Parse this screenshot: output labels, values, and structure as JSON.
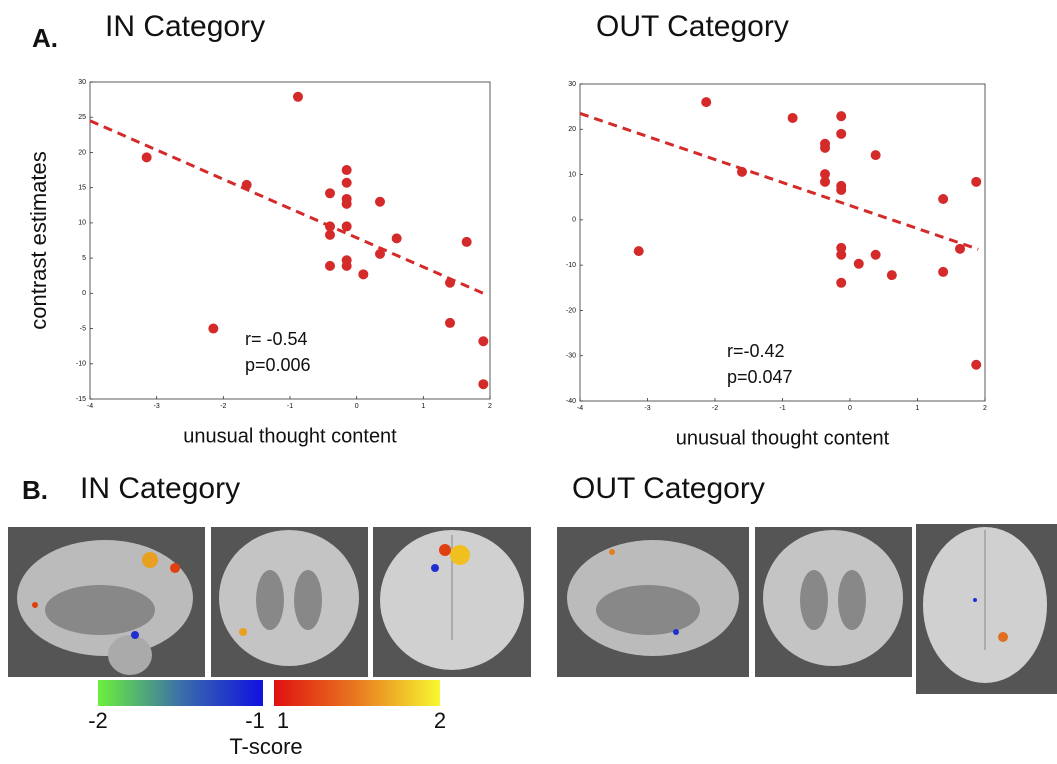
{
  "panel_a": {
    "label": "A."
  },
  "chart_data": [
    {
      "type": "scatter",
      "title": "IN Category",
      "x_label": "unusual thought content",
      "y_label": "contrast estimates",
      "annotations": [
        "r= -0.54",
        "p=0.006"
      ],
      "color": "#d42a2a",
      "x": [
        -3.15,
        -1.65,
        -0.88,
        -2.15,
        -0.4,
        -0.4,
        -0.4,
        -0.4,
        -0.15,
        -0.15,
        -0.15,
        -0.15,
        -0.15,
        -0.15,
        -0.15,
        0.1,
        0.35,
        0.35,
        0.6,
        1.4,
        1.4,
        1.65,
        1.9,
        1.9
      ],
      "y": [
        19.3,
        15.4,
        27.9,
        -5,
        14.2,
        9.5,
        8.3,
        3.9,
        17.5,
        15.7,
        13.4,
        12.7,
        9.5,
        4.7,
        3.9,
        2.7,
        13,
        5.6,
        7.8,
        1.5,
        -4.2,
        7.3,
        -6.8,
        -12.9
      ],
      "trendline": {
        "x": [
          -4,
          1.9
        ],
        "y": [
          24.5,
          0
        ]
      },
      "xlim": [
        -4,
        2
      ],
      "ylim": [
        -15,
        30
      ],
      "xticks": [
        -4,
        -3,
        -2,
        -1,
        0,
        1,
        2
      ],
      "yticks": [
        -15,
        -10,
        -5,
        0,
        5,
        10,
        15,
        20,
        25,
        30
      ]
    },
    {
      "type": "scatter",
      "title": "OUT Category",
      "x_label": "unusual thought content",
      "annotations": [
        "r=-0.42",
        "p=0.047"
      ],
      "color": "#d42a2a",
      "x": [
        -3.13,
        -2.13,
        -1.6,
        -0.85,
        -0.37,
        -0.37,
        -0.37,
        -0.37,
        -0.13,
        -0.13,
        -0.13,
        -0.13,
        -0.13,
        -0.13,
        -0.13,
        0.13,
        0.38,
        0.38,
        0.62,
        1.38,
        1.38,
        1.63,
        1.87,
        1.87
      ],
      "y": [
        -6.9,
        26,
        10.6,
        22.5,
        16.8,
        15.9,
        10.1,
        8.4,
        22.9,
        19,
        7.5,
        6.6,
        -6.2,
        -7.7,
        -13.9,
        -9.7,
        14.3,
        -7.7,
        -12.2,
        4.6,
        -11.5,
        -6.4,
        8.4,
        -32
      ],
      "trendline": {
        "x": [
          -4,
          1.9
        ],
        "y": [
          23.5,
          -6.5
        ]
      },
      "xlim": [
        -4,
        2
      ],
      "ylim": [
        -40,
        30
      ],
      "xticks": [
        -4,
        -3,
        -2,
        -1,
        0,
        1,
        2
      ],
      "yticks": [
        -40,
        -30,
        -20,
        -10,
        0,
        10,
        20,
        30
      ]
    }
  ],
  "panel_b": {
    "label": "B.",
    "left_title": "IN Category",
    "right_title": "OUT Category",
    "colorbar": {
      "negative_ticks": [
        -2,
        -1
      ],
      "positive_ticks": [
        1,
        2
      ],
      "label": "T-score"
    }
  }
}
